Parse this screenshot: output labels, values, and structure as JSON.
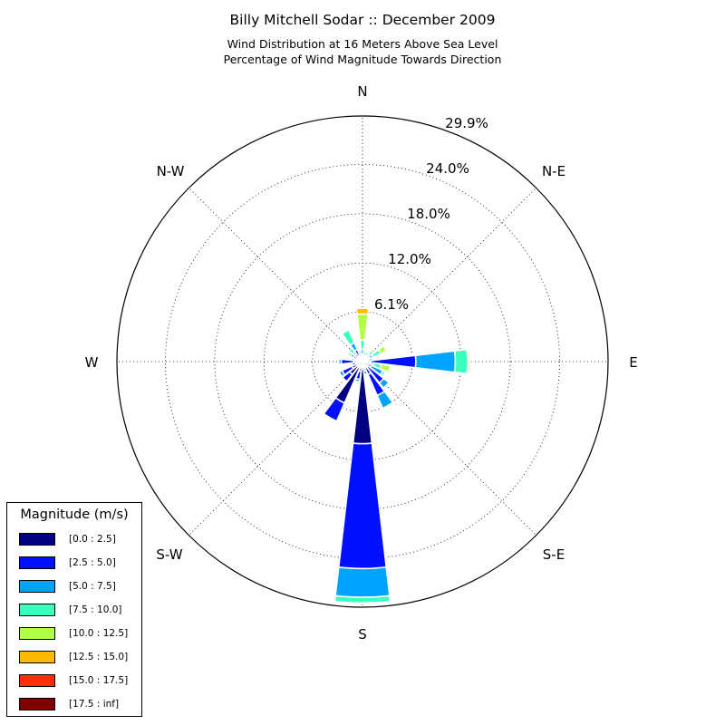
{
  "header": {
    "title": "Billy Mitchell Sodar :: December 2009",
    "subtitle1": "Wind Distribution at 16 Meters Above Sea Level",
    "subtitle2": "Percentage of Wind Magnitude Towards Direction"
  },
  "legend": {
    "title": "Magnitude (m/s)",
    "placement": "bottom-left",
    "items": [
      {
        "label": "[0.0 : 2.5]",
        "color": "#000080"
      },
      {
        "label": "[2.5 : 5.0]",
        "color": "#0010ff"
      },
      {
        "label": "[5.0 : 7.5]",
        "color": "#00a4ff"
      },
      {
        "label": "[7.5 : 10.0]",
        "color": "#3affbd"
      },
      {
        "label": "[10.0 : 12.5]",
        "color": "#b1ff46"
      },
      {
        "label": "[12.5 : 15.0]",
        "color": "#ffb900"
      },
      {
        "label": "[15.0 : 17.5]",
        "color": "#ff3000"
      },
      {
        "label": "[17.5 : inf]",
        "color": "#800000"
      }
    ]
  },
  "chart_data": {
    "type": "windrose",
    "title": "Billy Mitchell Sodar :: December 2009",
    "subtitle": "Wind Distribution at 16 Meters Above Sea Level / Percentage of Wind Magnitude Towards Direction",
    "direction_labels": [
      "N",
      "N-E",
      "E",
      "S-E",
      "S",
      "S-W",
      "W",
      "N-W"
    ],
    "radial_ticks": [
      "6.1%",
      "12.0%",
      "18.0%",
      "24.0%",
      "29.9%"
    ],
    "radial_tick_values": [
      6.1,
      12.0,
      18.0,
      24.0,
      29.9
    ],
    "rmax": 29.9,
    "grid": true,
    "legend_placement": "bottom-left",
    "bins": [
      "[0.0 : 2.5]",
      "[2.5 : 5.0]",
      "[5.0 : 7.5]",
      "[7.5 : 10.0]",
      "[10.0 : 12.5]",
      "[12.5 : 15.0]",
      "[15.0 : 17.5]",
      "[17.5 : inf]"
    ],
    "sectors": [
      {
        "direction": 0,
        "cumulative": [
          0.1,
          0.3,
          1.5,
          2.6,
          5.8,
          6.5
        ]
      },
      {
        "direction": 15,
        "cumulative": [
          0.3,
          0.7,
          1.2
        ]
      },
      {
        "direction": 30,
        "cumulative": [
          0.3,
          0.6,
          0.8,
          1.3,
          1.5
        ]
      },
      {
        "direction": 45,
        "cumulative": [
          0.3,
          0.6,
          1.1,
          1.7,
          2.0
        ]
      },
      {
        "direction": 60,
        "cumulative": [
          0.3,
          0.9,
          1.4,
          2.4,
          3.2,
          3.3
        ]
      },
      {
        "direction": 75,
        "cumulative": [
          0.3,
          1.2,
          1.4
        ]
      },
      {
        "direction": 90,
        "cumulative": [
          1.0,
          6.5,
          11.3,
          12.8,
          13.0,
          13.2
        ]
      },
      {
        "direction": 105,
        "cumulative": [
          0.5,
          1.1,
          1.4,
          2.3,
          3.4
        ]
      },
      {
        "direction": 120,
        "cumulative": [
          0.5,
          1.2,
          2.7,
          3.0,
          3.2
        ]
      },
      {
        "direction": 135,
        "cumulative": [
          0.8,
          3.3,
          4.1,
          4.2
        ]
      },
      {
        "direction": 150,
        "cumulative": [
          1.7,
          4.5,
          6.2,
          6.4
        ]
      },
      {
        "direction": 165,
        "cumulative": [
          0.6,
          1.1,
          1.6
        ]
      },
      {
        "direction": 180,
        "cumulative": [
          10.0,
          25.2,
          28.7,
          29.4,
          29.5
        ]
      },
      {
        "direction": 195,
        "cumulative": [
          1.2,
          2.2,
          2.5
        ]
      },
      {
        "direction": 210,
        "cumulative": [
          5.5,
          7.9,
          8.0,
          8.1
        ]
      },
      {
        "direction": 225,
        "cumulative": [
          2.0,
          3.1,
          3.2
        ]
      },
      {
        "direction": 240,
        "cumulative": [
          1.4,
          2.7,
          3.1
        ]
      },
      {
        "direction": 255,
        "cumulative": [
          0.6,
          1.3,
          1.5
        ]
      },
      {
        "direction": 270,
        "cumulative": [
          1.1,
          2.6,
          2.9
        ]
      },
      {
        "direction": 285,
        "cumulative": [
          0.4,
          1.0,
          1.3
        ]
      },
      {
        "direction": 300,
        "cumulative": [
          0.5,
          1.2,
          1.6,
          1.9
        ]
      },
      {
        "direction": 315,
        "cumulative": [
          0.8,
          1.2,
          1.5,
          2.1
        ]
      },
      {
        "direction": 330,
        "cumulative": [
          0.8,
          1.6,
          2.5,
          4.2
        ]
      },
      {
        "direction": 345,
        "cumulative": [
          0.3,
          0.6,
          1.0,
          1.4
        ]
      }
    ]
  }
}
